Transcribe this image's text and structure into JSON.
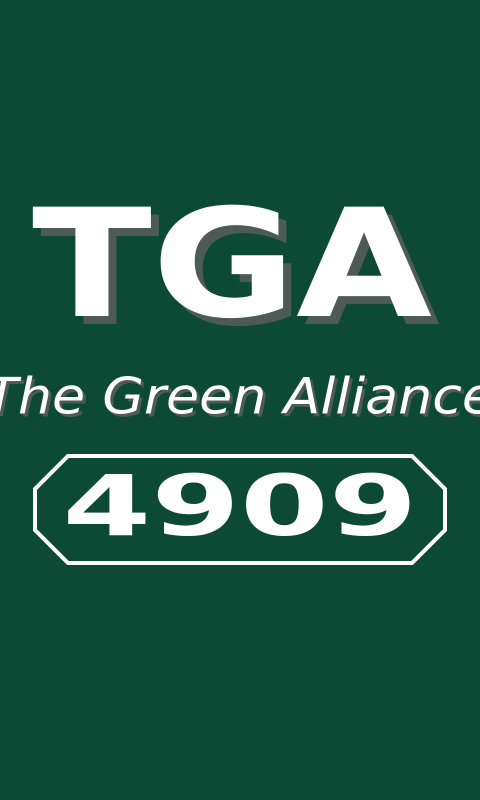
{
  "logo": {
    "acronym": "TGA",
    "tagline": "The Green Alliance",
    "team_number": "4909"
  }
}
